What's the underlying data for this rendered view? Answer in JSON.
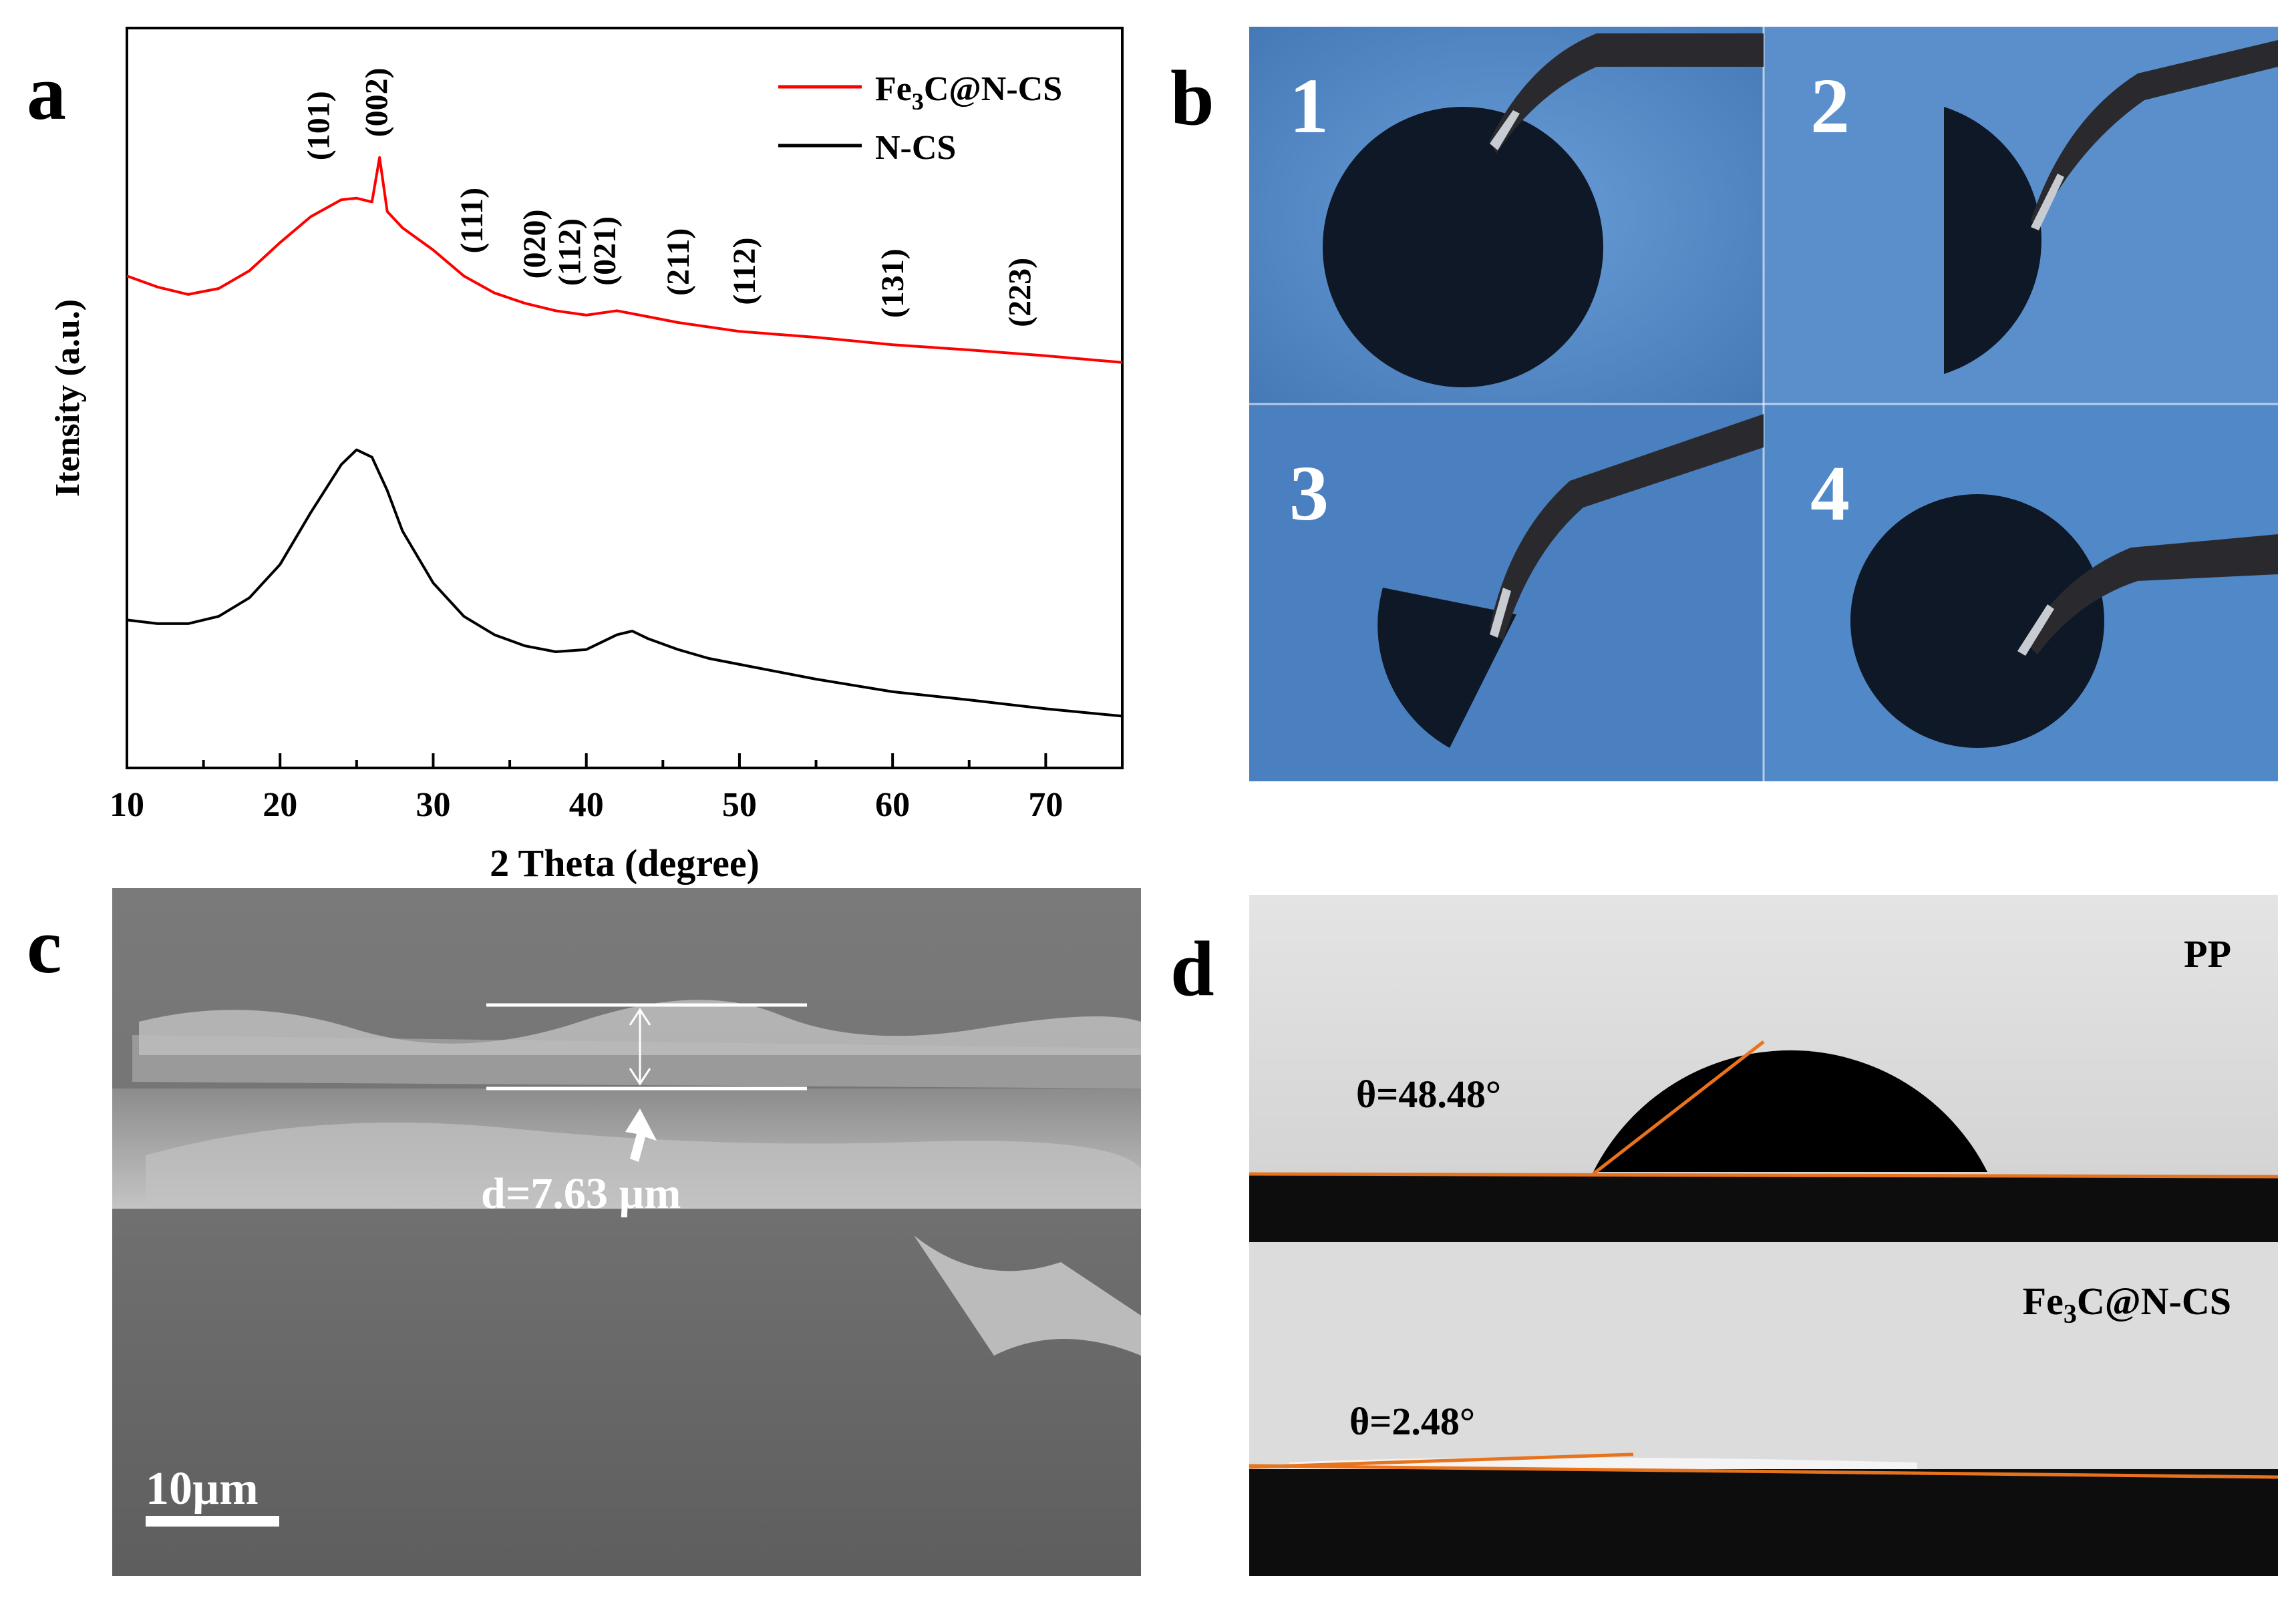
{
  "panels": {
    "a": {
      "letter": "a"
    },
    "b": {
      "letter": "b",
      "sub_labels": [
        "1",
        "2",
        "3",
        "4"
      ]
    },
    "c": {
      "letter": "c",
      "thickness": "d=7.63 µm",
      "scale_bar": "10µm"
    },
    "d": {
      "letter": "d",
      "top_label": "PP",
      "top_angle": "θ=48.48°",
      "bottom_label_prefix": "Fe",
      "bottom_label_sub": "3",
      "bottom_label_suffix": "C@N-CS",
      "bottom_angle": "θ=2.48°"
    }
  },
  "chart_data": {
    "type": "line",
    "xlabel": "2 Theta (degree)",
    "ylabel": "Itensity (a.u.)",
    "xlim": [
      10,
      75
    ],
    "xticks": [
      "10",
      "20",
      "30",
      "40",
      "50",
      "60",
      "70"
    ],
    "legend_position": "top-right",
    "grid": false,
    "series": [
      {
        "name_prefix": "Fe",
        "name_sub": "3",
        "name_suffix": "C@N-CS",
        "color": "#ff0000",
        "x": [
          10,
          12,
          14,
          16,
          18,
          20,
          22,
          24,
          25,
          26,
          26.5,
          27,
          28,
          30,
          32,
          34,
          36,
          38,
          40,
          42,
          44,
          46,
          48,
          50,
          55,
          60,
          65,
          70,
          75
        ],
        "y": [
          0.665,
          0.65,
          0.64,
          0.648,
          0.672,
          0.71,
          0.745,
          0.768,
          0.77,
          0.765,
          0.825,
          0.752,
          0.73,
          0.7,
          0.665,
          0.642,
          0.628,
          0.618,
          0.612,
          0.618,
          0.61,
          0.602,
          0.596,
          0.59,
          0.582,
          0.572,
          0.565,
          0.557,
          0.548
        ]
      },
      {
        "name": "N-CS",
        "color": "#000000",
        "x": [
          10,
          12,
          14,
          16,
          18,
          20,
          22,
          24,
          25,
          26,
          27,
          28,
          30,
          32,
          34,
          36,
          38,
          40,
          42,
          43,
          44,
          46,
          48,
          50,
          55,
          60,
          65,
          70,
          75
        ],
        "y": [
          0.2,
          0.195,
          0.195,
          0.205,
          0.23,
          0.275,
          0.345,
          0.41,
          0.43,
          0.42,
          0.375,
          0.32,
          0.25,
          0.205,
          0.18,
          0.165,
          0.157,
          0.16,
          0.18,
          0.185,
          0.175,
          0.16,
          0.148,
          0.14,
          0.12,
          0.103,
          0.092,
          0.08,
          0.07
        ]
      }
    ],
    "annotations": [
      {
        "text": "(101)",
        "x": 22.5
      },
      {
        "text": "(002)",
        "x": 26.3
      },
      {
        "text": "(111)",
        "x": 32.5
      },
      {
        "text": "(020)",
        "x": 36.6
      },
      {
        "text": "(112)",
        "x": 38.9
      },
      {
        "text": "(021)",
        "x": 41.2
      },
      {
        "text": "(211)",
        "x": 46.0
      },
      {
        "text": "(112)",
        "x": 50.3
      },
      {
        "text": "(131)",
        "x": 60.0
      },
      {
        "text": "(223)",
        "x": 68.3
      }
    ]
  }
}
